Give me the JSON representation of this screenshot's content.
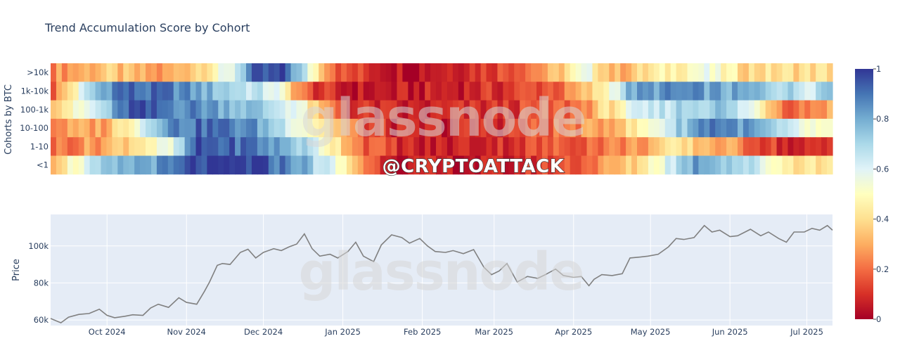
{
  "chart_data": [
    {
      "type": "heatmap",
      "title": "Trend Accumulation Score by Cohort",
      "ylabel": "Cohorts by BTC",
      "rows": [
        ">10k",
        "1k-10k",
        "100-1k",
        "10-100",
        "1-10",
        "<1"
      ],
      "x_range": [
        "2024-09-09",
        "2025-07-11"
      ],
      "colorbar": {
        "range": [
          0,
          1
        ],
        "ticks": [
          "0",
          "0.2",
          "0.4",
          "0.6",
          "0.8",
          "1"
        ]
      },
      "colorscale": [
        "#a50026",
        "#d73027",
        "#f46d43",
        "#fdae61",
        "#fee090",
        "#ffffbf",
        "#e0f3f8",
        "#abd9e9",
        "#74add1",
        "#4575b4",
        "#313695"
      ],
      "segments": [
        [
          [
            0,
            0.25
          ],
          [
            5,
            0.3
          ],
          [
            10,
            0.35
          ],
          [
            15,
            0.3
          ],
          [
            20,
            0.25
          ],
          [
            26,
            0.4
          ],
          [
            32,
            0.55
          ],
          [
            36,
            0.9
          ],
          [
            42,
            0.95
          ],
          [
            46,
            0.6
          ],
          [
            49,
            0.35
          ],
          [
            52,
            0.15
          ],
          [
            64,
            0.05
          ],
          [
            80,
            0.15
          ],
          [
            90,
            0.3
          ],
          [
            96,
            0.55
          ],
          [
            101,
            0.3
          ],
          [
            110,
            0.45
          ],
          [
            117,
            0.55
          ],
          [
            124,
            0.4
          ],
          [
            130,
            0.4
          ],
          [
            140,
            0.4
          ]
        ],
        [
          [
            0,
            0.15
          ],
          [
            4,
            0.45
          ],
          [
            8,
            0.75
          ],
          [
            12,
            0.92
          ],
          [
            22,
            0.88
          ],
          [
            30,
            0.75
          ],
          [
            40,
            0.6
          ],
          [
            46,
            0.15
          ],
          [
            52,
            0.05
          ],
          [
            64,
            0.05
          ],
          [
            80,
            0.1
          ],
          [
            92,
            0.2
          ],
          [
            98,
            0.4
          ],
          [
            104,
            0.8
          ],
          [
            112,
            0.85
          ],
          [
            120,
            0.8
          ],
          [
            128,
            0.75
          ],
          [
            136,
            0.65
          ],
          [
            140,
            0.8
          ]
        ],
        [
          [
            0,
            0.4
          ],
          [
            5,
            0.5
          ],
          [
            10,
            0.7
          ],
          [
            14,
            0.95
          ],
          [
            20,
            0.9
          ],
          [
            28,
            0.85
          ],
          [
            36,
            0.75
          ],
          [
            44,
            0.6
          ],
          [
            48,
            0.3
          ],
          [
            54,
            0.1
          ],
          [
            64,
            0.05
          ],
          [
            80,
            0.1
          ],
          [
            94,
            0.2
          ],
          [
            104,
            0.55
          ],
          [
            112,
            0.7
          ],
          [
            120,
            0.75
          ],
          [
            126,
            0.55
          ],
          [
            132,
            0.2
          ],
          [
            140,
            0.3
          ]
        ],
        [
          [
            0,
            0.25
          ],
          [
            10,
            0.3
          ],
          [
            16,
            0.6
          ],
          [
            20,
            0.85
          ],
          [
            28,
            0.92
          ],
          [
            36,
            0.85
          ],
          [
            44,
            0.6
          ],
          [
            50,
            0.4
          ],
          [
            56,
            0.15
          ],
          [
            64,
            0.05
          ],
          [
            80,
            0.1
          ],
          [
            96,
            0.25
          ],
          [
            104,
            0.4
          ],
          [
            112,
            0.7
          ],
          [
            118,
            0.92
          ],
          [
            126,
            0.8
          ],
          [
            132,
            0.6
          ],
          [
            140,
            0.45
          ]
        ],
        [
          [
            0,
            0.2
          ],
          [
            10,
            0.3
          ],
          [
            16,
            0.45
          ],
          [
            22,
            0.55
          ],
          [
            26,
            0.95
          ],
          [
            36,
            0.9
          ],
          [
            44,
            0.75
          ],
          [
            50,
            0.5
          ],
          [
            56,
            0.2
          ],
          [
            66,
            0.05
          ],
          [
            80,
            0.1
          ],
          [
            96,
            0.2
          ],
          [
            104,
            0.25
          ],
          [
            112,
            0.4
          ],
          [
            120,
            0.3
          ],
          [
            128,
            0.15
          ],
          [
            134,
            0.05
          ],
          [
            140,
            0.1
          ]
        ],
        [
          [
            0,
            0.35
          ],
          [
            5,
            0.55
          ],
          [
            10,
            0.7
          ],
          [
            15,
            0.8
          ],
          [
            22,
            0.85
          ],
          [
            26,
            0.97
          ],
          [
            36,
            0.97
          ],
          [
            44,
            0.85
          ],
          [
            52,
            0.5
          ],
          [
            58,
            0.15
          ],
          [
            64,
            0.05
          ],
          [
            80,
            0.05
          ],
          [
            96,
            0.2
          ],
          [
            104,
            0.35
          ],
          [
            116,
            0.85
          ],
          [
            124,
            0.7
          ],
          [
            132,
            0.45
          ],
          [
            140,
            0.4
          ]
        ]
      ]
    },
    {
      "type": "line",
      "ylabel": "Price",
      "ylim": [
        57000,
        117000
      ],
      "yticks": [
        {
          "v": 60000,
          "label": "60k"
        },
        {
          "v": 80000,
          "label": "80k"
        },
        {
          "v": 100000,
          "label": "100k"
        }
      ],
      "x_range": [
        "2024-09-09",
        "2025-07-11"
      ],
      "xticks": [
        {
          "date": "2024-10-01",
          "label": "Oct 2024"
        },
        {
          "date": "2024-11-01",
          "label": "Nov 2024"
        },
        {
          "date": "2024-12-01",
          "label": "Dec 2024"
        },
        {
          "date": "2025-01-01",
          "label": "Jan 2025"
        },
        {
          "date": "2025-02-01",
          "label": "Feb 2025"
        },
        {
          "date": "2025-03-01",
          "label": "Mar 2025"
        },
        {
          "date": "2025-04-01",
          "label": "Apr 2025"
        },
        {
          "date": "2025-05-01",
          "label": "May 2025"
        },
        {
          "date": "2025-06-01",
          "label": "Jun 2025"
        },
        {
          "date": "2025-07-01",
          "label": "Jul 2025"
        }
      ],
      "series": [
        {
          "color": "#808080",
          "points": [
            [
              "2024-09-09",
              60800
            ],
            [
              "2024-09-13",
              58500
            ],
            [
              "2024-09-16",
              61500
            ],
            [
              "2024-09-20",
              63000
            ],
            [
              "2024-09-24",
              63500
            ],
            [
              "2024-09-28",
              65800
            ],
            [
              "2024-10-01",
              62500
            ],
            [
              "2024-10-04",
              61200
            ],
            [
              "2024-10-08",
              62000
            ],
            [
              "2024-10-11",
              62800
            ],
            [
              "2024-10-15",
              62500
            ],
            [
              "2024-10-18",
              66500
            ],
            [
              "2024-10-21",
              68500
            ],
            [
              "2024-10-25",
              66800
            ],
            [
              "2024-10-29",
              72000
            ],
            [
              "2024-11-01",
              69500
            ],
            [
              "2024-11-05",
              68500
            ],
            [
              "2024-11-08",
              75500
            ],
            [
              "2024-11-10",
              80500
            ],
            [
              "2024-11-13",
              89500
            ],
            [
              "2024-11-15",
              90500
            ],
            [
              "2024-11-18",
              90000
            ],
            [
              "2024-11-22",
              96500
            ],
            [
              "2024-11-25",
              98200
            ],
            [
              "2024-11-28",
              93500
            ],
            [
              "2024-12-01",
              96500
            ],
            [
              "2024-12-05",
              98500
            ],
            [
              "2024-12-08",
              97500
            ],
            [
              "2024-12-11",
              99500
            ],
            [
              "2024-12-14",
              101000
            ],
            [
              "2024-12-17",
              106500
            ],
            [
              "2024-12-20",
              98500
            ],
            [
              "2024-12-23",
              94500
            ],
            [
              "2024-12-27",
              95500
            ],
            [
              "2024-12-30",
              93500
            ],
            [
              "2025-01-03",
              97000
            ],
            [
              "2025-01-06",
              102000
            ],
            [
              "2025-01-09",
              94500
            ],
            [
              "2025-01-13",
              91500
            ],
            [
              "2025-01-16",
              100500
            ],
            [
              "2025-01-20",
              106000
            ],
            [
              "2025-01-24",
              104500
            ],
            [
              "2025-01-27",
              101500
            ],
            [
              "2025-01-31",
              104000
            ],
            [
              "2025-02-03",
              100000
            ],
            [
              "2025-02-06",
              97000
            ],
            [
              "2025-02-10",
              96500
            ],
            [
              "2025-02-13",
              97500
            ],
            [
              "2025-02-17",
              95800
            ],
            [
              "2025-02-21",
              98000
            ],
            [
              "2025-02-25",
              88500
            ],
            [
              "2025-02-28",
              84500
            ],
            [
              "2025-03-03",
              86500
            ],
            [
              "2025-03-06",
              90500
            ],
            [
              "2025-03-10",
              80500
            ],
            [
              "2025-03-14",
              83500
            ],
            [
              "2025-03-18",
              82500
            ],
            [
              "2025-03-21",
              84500
            ],
            [
              "2025-03-25",
              87500
            ],
            [
              "2025-03-28",
              84000
            ],
            [
              "2025-04-01",
              83000
            ],
            [
              "2025-04-04",
              83500
            ],
            [
              "2025-04-07",
              78500
            ],
            [
              "2025-04-09",
              82000
            ],
            [
              "2025-04-12",
              84500
            ],
            [
              "2025-04-16",
              84000
            ],
            [
              "2025-04-20",
              85000
            ],
            [
              "2025-04-23",
              93500
            ],
            [
              "2025-04-27",
              94000
            ],
            [
              "2025-04-30",
              94500
            ],
            [
              "2025-05-04",
              95500
            ],
            [
              "2025-05-08",
              99500
            ],
            [
              "2025-05-11",
              104000
            ],
            [
              "2025-05-14",
              103500
            ],
            [
              "2025-05-18",
              104500
            ],
            [
              "2025-05-22",
              111000
            ],
            [
              "2025-05-25",
              107500
            ],
            [
              "2025-05-28",
              108500
            ],
            [
              "2025-06-01",
              105000
            ],
            [
              "2025-06-04",
              105500
            ],
            [
              "2025-06-09",
              109000
            ],
            [
              "2025-06-13",
              105500
            ],
            [
              "2025-06-16",
              107500
            ],
            [
              "2025-06-20",
              104000
            ],
            [
              "2025-06-23",
              102000
            ],
            [
              "2025-06-26",
              107500
            ],
            [
              "2025-06-30",
              107500
            ],
            [
              "2025-07-03",
              109500
            ],
            [
              "2025-07-06",
              108500
            ],
            [
              "2025-07-09",
              111000
            ],
            [
              "2025-07-11",
              108500
            ]
          ]
        }
      ]
    }
  ],
  "watermarks": {
    "brand": "glassnode",
    "stamp": "@CRYPTOATTACK"
  }
}
